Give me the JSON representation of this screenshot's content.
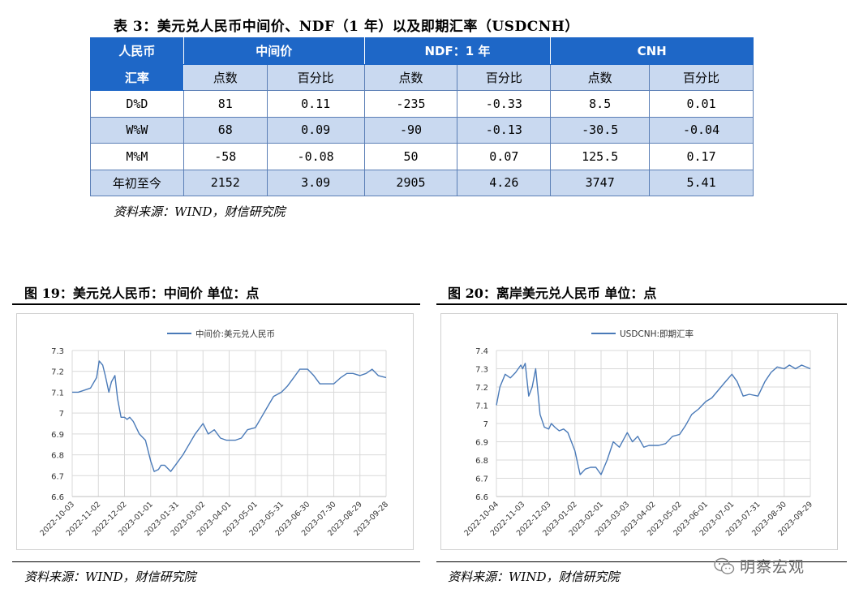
{
  "table": {
    "caption": "表 3：美元兑人民币中间价、NDF（1 年）以及即期汇率（USDCNH）",
    "corner_top": "人民币",
    "corner_bottom": "汇率",
    "groups": [
      "中间价",
      "NDF：1 年",
      "CNH"
    ],
    "subheaders": [
      "点数",
      "百分比",
      "点数",
      "百分比",
      "点数",
      "百分比"
    ],
    "rows": [
      {
        "label": "D%D",
        "values": [
          "81",
          "0.11",
          "-235",
          "-0.33",
          "8.5",
          "0.01"
        ]
      },
      {
        "label": "W%W",
        "values": [
          "68",
          "0.09",
          "-90",
          "-0.13",
          "-30.5",
          "-0.04"
        ]
      },
      {
        "label": "M%M",
        "values": [
          "-58",
          "-0.08",
          "50",
          "0.07",
          "125.5",
          "0.17"
        ]
      },
      {
        "label": "年初至今",
        "values": [
          "2152",
          "3.09",
          "2905",
          "4.26",
          "3747",
          "5.41"
        ]
      }
    ],
    "source": "资料来源：WIND，财信研究院"
  },
  "figures": [
    {
      "title": "图 19：美元兑人民币：中间价 单位：点",
      "source": "资料来源：WIND，财信研究院"
    },
    {
      "title": "图 20：离岸美元兑人民币 单位：点",
      "source": "资料来源：WIND，财信研究院"
    }
  ],
  "watermark": "明察宏观",
  "chart_data": [
    {
      "type": "line",
      "series": [
        {
          "name": "中间价:美元兑人民币",
          "x": [
            "2022-10-03",
            "2022-10-10",
            "2022-10-17",
            "2022-10-24",
            "2022-10-31",
            "2022-11-03",
            "2022-11-07",
            "2022-11-10",
            "2022-11-14",
            "2022-11-17",
            "2022-11-21",
            "2022-11-24",
            "2022-11-28",
            "2022-12-02",
            "2022-12-05",
            "2022-12-08",
            "2022-12-12",
            "2022-12-19",
            "2022-12-26",
            "2023-01-01",
            "2023-01-05",
            "2023-01-10",
            "2023-01-13",
            "2023-01-17",
            "2023-01-24",
            "2023-01-31",
            "2023-02-07",
            "2023-02-14",
            "2023-02-21",
            "2023-03-02",
            "2023-03-08",
            "2023-03-15",
            "2023-03-22",
            "2023-03-29",
            "2023-04-01",
            "2023-04-08",
            "2023-04-15",
            "2023-04-22",
            "2023-05-01",
            "2023-05-08",
            "2023-05-15",
            "2023-05-22",
            "2023-05-31",
            "2023-06-07",
            "2023-06-14",
            "2023-06-21",
            "2023-06-30",
            "2023-07-07",
            "2023-07-14",
            "2023-07-21",
            "2023-07-30",
            "2023-08-07",
            "2023-08-14",
            "2023-08-21",
            "2023-08-29",
            "2023-09-05",
            "2023-09-12",
            "2023-09-19",
            "2023-09-28"
          ],
          "values": [
            7.1,
            7.1,
            7.11,
            7.12,
            7.17,
            7.25,
            7.23,
            7.18,
            7.1,
            7.15,
            7.18,
            7.07,
            6.98,
            6.98,
            6.97,
            6.98,
            6.96,
            6.9,
            6.87,
            6.77,
            6.72,
            6.73,
            6.75,
            6.75,
            6.72,
            6.76,
            6.8,
            6.85,
            6.9,
            6.95,
            6.9,
            6.92,
            6.88,
            6.87,
            6.87,
            6.87,
            6.88,
            6.92,
            6.93,
            6.98,
            7.03,
            7.08,
            7.1,
            7.13,
            7.17,
            7.21,
            7.21,
            7.18,
            7.14,
            7.14,
            7.14,
            7.17,
            7.19,
            7.19,
            7.18,
            7.19,
            7.21,
            7.18,
            7.17
          ]
        }
      ],
      "xticks": [
        "2022-10-03",
        "2022-11-02",
        "2022-12-02",
        "2023-01-01",
        "2023-01-31",
        "2023-03-02",
        "2023-04-01",
        "2023-05-01",
        "2023-05-31",
        "2023-06-30",
        "2023-07-30",
        "2023-08-29",
        "2023-09-28"
      ],
      "yticks": [
        "6.6",
        "6.7",
        "6.8",
        "6.9",
        "7",
        "7.1",
        "7.2",
        "7.3"
      ],
      "ylim": [
        6.6,
        7.3
      ],
      "grid": true,
      "legend": "top-center"
    },
    {
      "type": "line",
      "series": [
        {
          "name": "USDCNH:即期汇率",
          "x": [
            "2022-10-04",
            "2022-10-08",
            "2022-10-14",
            "2022-10-20",
            "2022-10-26",
            "2022-11-01",
            "2022-11-03",
            "2022-11-06",
            "2022-11-10",
            "2022-11-14",
            "2022-11-18",
            "2022-11-23",
            "2022-11-28",
            "2022-12-03",
            "2022-12-06",
            "2022-12-10",
            "2022-12-15",
            "2022-12-20",
            "2022-12-25",
            "2023-01-02",
            "2023-01-08",
            "2023-01-14",
            "2023-01-20",
            "2023-01-26",
            "2023-02-01",
            "2023-02-08",
            "2023-02-15",
            "2023-02-22",
            "2023-03-03",
            "2023-03-09",
            "2023-03-15",
            "2023-03-22",
            "2023-03-28",
            "2023-04-02",
            "2023-04-08",
            "2023-04-16",
            "2023-04-24",
            "2023-05-02",
            "2023-05-09",
            "2023-05-16",
            "2023-05-24",
            "2023-06-01",
            "2023-06-08",
            "2023-06-15",
            "2023-06-22",
            "2023-07-01",
            "2023-07-07",
            "2023-07-14",
            "2023-07-21",
            "2023-07-31",
            "2023-08-08",
            "2023-08-15",
            "2023-08-22",
            "2023-08-30",
            "2023-09-05",
            "2023-09-12",
            "2023-09-19",
            "2023-09-29"
          ],
          "values": [
            7.1,
            7.2,
            7.27,
            7.25,
            7.28,
            7.32,
            7.3,
            7.33,
            7.15,
            7.2,
            7.3,
            7.05,
            6.98,
            6.97,
            7.0,
            6.98,
            6.96,
            6.97,
            6.95,
            6.85,
            6.72,
            6.75,
            6.76,
            6.76,
            6.72,
            6.8,
            6.9,
            6.87,
            6.95,
            6.9,
            6.93,
            6.87,
            6.88,
            6.88,
            6.88,
            6.89,
            6.93,
            6.94,
            6.99,
            7.05,
            7.08,
            7.12,
            7.14,
            7.18,
            7.22,
            7.27,
            7.23,
            7.15,
            7.16,
            7.15,
            7.23,
            7.28,
            7.31,
            7.3,
            7.32,
            7.3,
            7.32,
            7.3
          ]
        }
      ],
      "xticks": [
        "2022-10-04",
        "2022-11-03",
        "2022-12-03",
        "2023-01-02",
        "2023-02-01",
        "2023-03-03",
        "2023-04-02",
        "2023-05-02",
        "2023-06-01",
        "2023-07-01",
        "2023-07-31",
        "2023-08-30",
        "2023-09-29"
      ],
      "yticks": [
        "6.6",
        "6.7",
        "6.8",
        "6.9",
        "7",
        "7.1",
        "7.2",
        "7.3",
        "7.4"
      ],
      "ylim": [
        6.6,
        7.4
      ],
      "grid": true,
      "legend": "top-center"
    }
  ]
}
